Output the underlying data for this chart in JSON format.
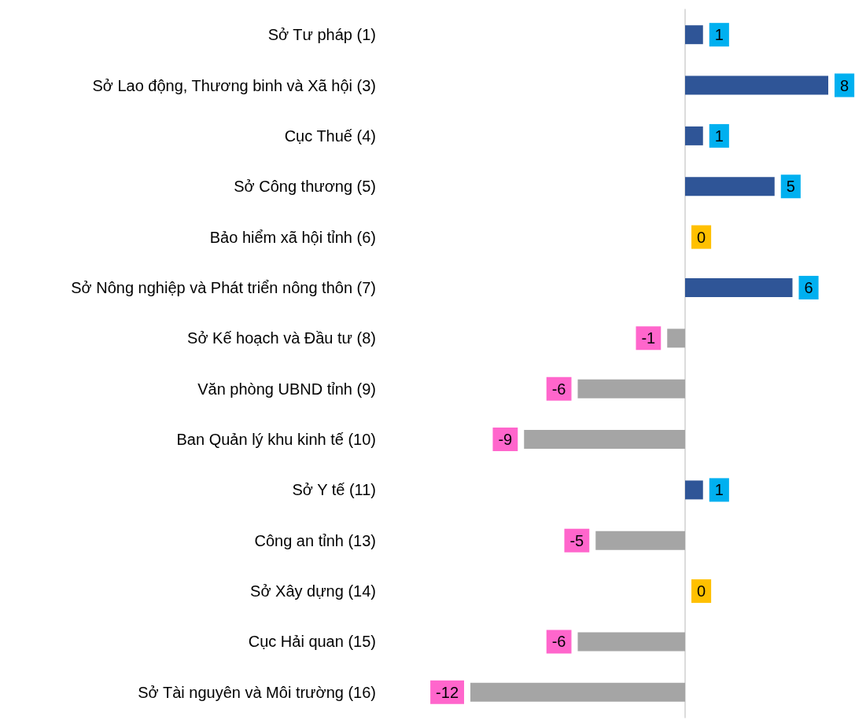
{
  "chart_data": {
    "type": "bar",
    "orientation": "horizontal",
    "categories": [
      "Sở Tư pháp (1)",
      "Sở Lao động, Thương binh và Xã hội (3)",
      "Cục Thuế (4)",
      "Sở Công thương (5)",
      "Bảo hiểm xã hội tỉnh (6)",
      "Sở Nông nghiệp và Phát triển nông thôn (7)",
      "Sở Kế hoạch và Đầu tư (8)",
      "Văn phòng UBND tỉnh (9)",
      "Ban Quản lý khu kinh tế (10)",
      "Sở Y tế (11)",
      "Công an tỉnh (13)",
      "Sở Xây dựng (14)",
      "Cục Hải quan (15)",
      "Sở Tài nguyên và Môi trường (16)"
    ],
    "values": [
      1,
      8,
      1,
      5,
      0,
      6,
      -1,
      -6,
      -9,
      1,
      -5,
      0,
      -6,
      -12
    ],
    "colors": [
      "#2f5597",
      "#2f5597",
      "#2f5597",
      "#2f5597",
      "#2f5597",
      "#2f5597",
      "#a5a5a5",
      "#a5a5a5",
      "#a5a5a5",
      "#2f5597",
      "#a5a5a5",
      "#2f5597",
      "#a5a5a5",
      "#a5a5a5"
    ],
    "data_labels": true,
    "tick_labels": "y"
  }
}
